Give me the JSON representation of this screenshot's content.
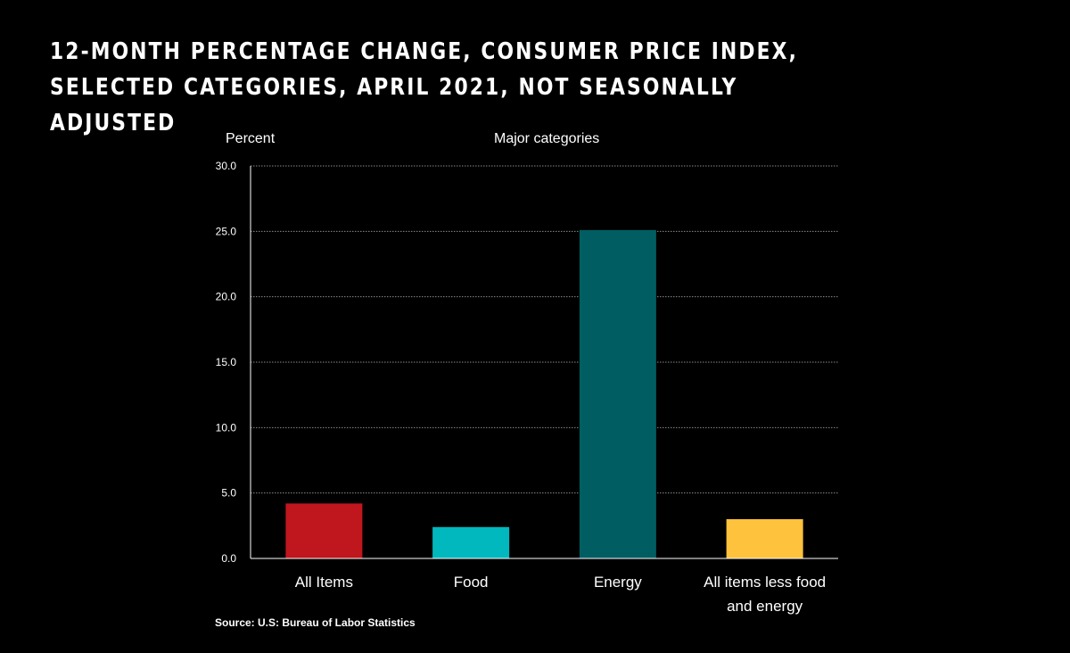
{
  "title": "12-MONTH PERCENTAGE CHANGE, CONSUMER PRICE INDEX, SELECTED CATEGORIES, APRIL 2021, NOT SEASONALLY ADJUSTED",
  "source": "Source: U.S: Bureau of Labor Statistics",
  "chart_data": {
    "type": "bar",
    "title": "12-MONTH PERCENTAGE CHANGE, CONSUMER PRICE INDEX, SELECTED CATEGORIES, APRIL 2021, NOT SEASONALLY ADJUSTED",
    "subtitle": "Major categories",
    "ylabel": "Percent",
    "xlabel": "",
    "ylim": [
      0,
      30
    ],
    "yticks": [
      "0.0",
      "5.0",
      "10.0",
      "15.0",
      "20.0",
      "25.0",
      "30.0"
    ],
    "grid": true,
    "categories": [
      "All Items",
      "Food",
      "Energy",
      "All items less food and energy"
    ],
    "category_lines": [
      [
        "All Items"
      ],
      [
        "Food"
      ],
      [
        "Energy"
      ],
      [
        "All items less food",
        "and energy"
      ]
    ],
    "values": [
      4.2,
      2.4,
      25.1,
      3.0
    ],
    "colors": [
      "#c0161e",
      "#00b8be",
      "#005e62",
      "#ffc23c"
    ],
    "background": "#000000",
    "gridline_color": "#8a8a8a"
  }
}
